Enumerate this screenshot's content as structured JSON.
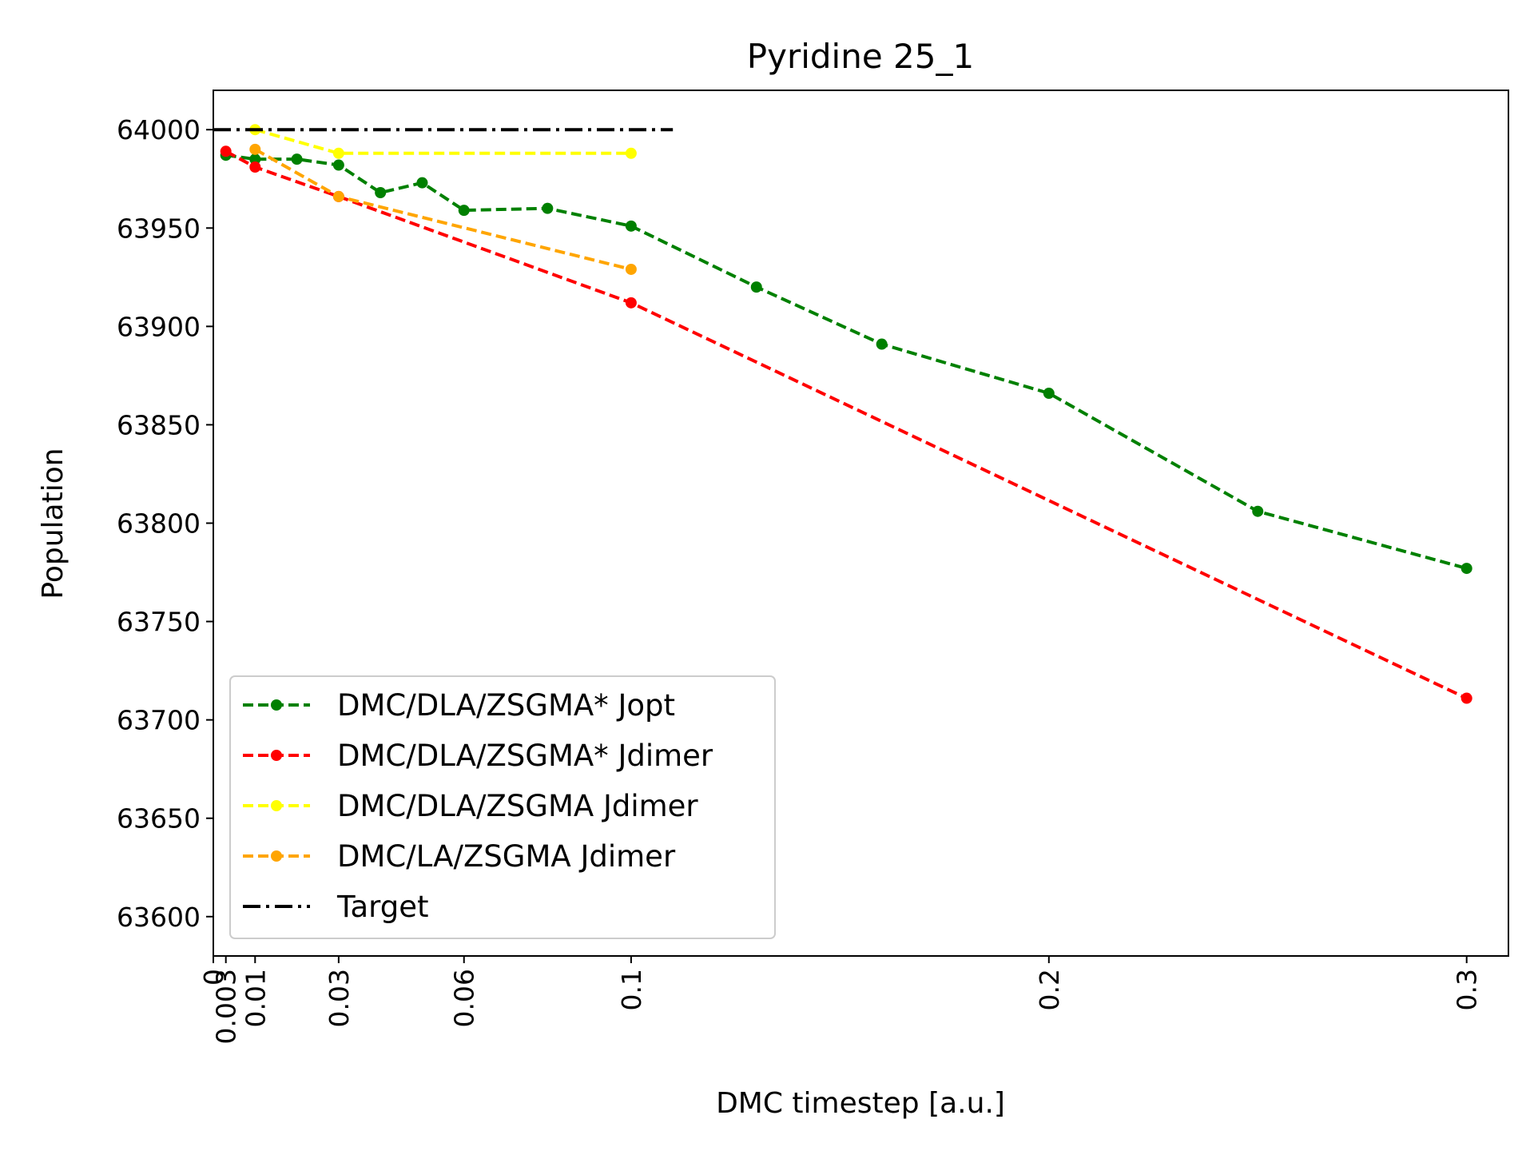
{
  "chart_data": {
    "type": "line",
    "title": "Pyridine 25_1",
    "xlabel": "DMC timestep [a.u.]",
    "ylabel": "Population",
    "xlim": [
      0,
      0.31
    ],
    "ylim": [
      63580,
      64020
    ],
    "x_ticks": [
      {
        "value": 0,
        "label": "0"
      },
      {
        "value": 0.003,
        "label": "0.003"
      },
      {
        "value": 0.01,
        "label": "0.01"
      },
      {
        "value": 0.03,
        "label": "0.03"
      },
      {
        "value": 0.06,
        "label": "0.06"
      },
      {
        "value": 0.1,
        "label": "0.1"
      },
      {
        "value": 0.2,
        "label": "0.2"
      },
      {
        "value": 0.3,
        "label": "0.3"
      }
    ],
    "y_ticks": [
      63600,
      63650,
      63700,
      63750,
      63800,
      63850,
      63900,
      63950,
      64000
    ],
    "grid": false,
    "legend_position": "lower-left",
    "series": [
      {
        "name": "DMC/DLA/ZSGMA* Jopt",
        "color": "#008000",
        "linestyle": "dashed",
        "marker": "dot",
        "x": [
          0.003,
          0.01,
          0.02,
          0.03,
          0.04,
          0.05,
          0.06,
          0.08,
          0.1,
          0.13,
          0.16,
          0.2,
          0.25,
          0.3
        ],
        "y": [
          63987,
          63985,
          63985,
          63982,
          63968,
          63973,
          63959,
          63960,
          63951,
          63920,
          63891,
          63866,
          63806,
          63777
        ]
      },
      {
        "name": "DMC/DLA/ZSGMA* Jdimer",
        "color": "#ff0000",
        "linestyle": "dashed",
        "marker": "dot",
        "x": [
          0.003,
          0.01,
          0.03,
          0.1,
          0.3
        ],
        "y": [
          63989,
          63981,
          63966,
          63912,
          63711
        ]
      },
      {
        "name": "DMC/DLA/ZSGMA Jdimer",
        "color": "#ffff00",
        "linestyle": "dashed",
        "marker": "dot",
        "x": [
          0.01,
          0.03,
          0.1
        ],
        "y": [
          64000,
          63988,
          63988
        ]
      },
      {
        "name": "DMC/LA/ZSGMA Jdimer",
        "color": "#ffa500",
        "linestyle": "dashed",
        "marker": "dot",
        "x": [
          0.01,
          0.03,
          0.1
        ],
        "y": [
          63990,
          63966,
          63929
        ]
      },
      {
        "name": "Target",
        "color": "#000000",
        "linestyle": "dashdot",
        "marker": "none",
        "x": [
          0,
          0.11
        ],
        "y": [
          64000,
          64000
        ]
      }
    ]
  }
}
